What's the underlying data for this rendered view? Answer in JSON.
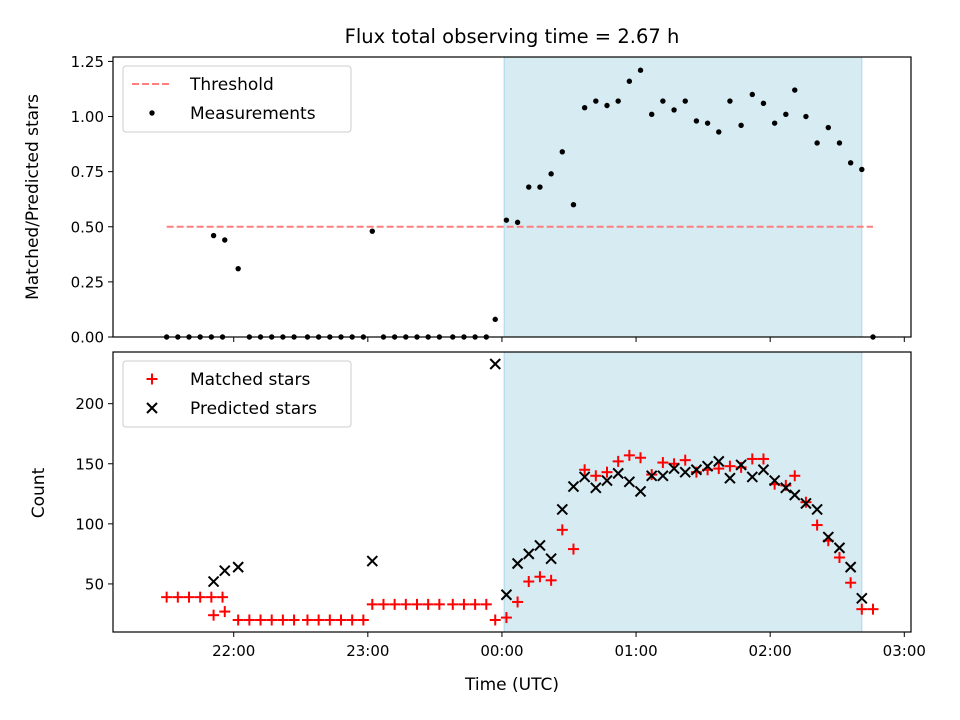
{
  "title": "Flux total observing time = 2.67 h",
  "colors": {
    "threshold": "#ff7f7f",
    "measurement": "#000000",
    "matched": "#ff0000",
    "predicted": "#000000",
    "span": "#add8e6"
  },
  "chart_data": [
    {
      "type": "scatter",
      "ylabel": "Matched/Predicted stars",
      "xlabel": "",
      "ylim": [
        0,
        1.27
      ],
      "y_ticks": [
        "0.00",
        "0.25",
        "0.50",
        "0.75",
        "1.00",
        "1.25"
      ],
      "x_range_hours": [
        -2.9,
        3.05
      ],
      "x_ticks": [
        "22:00",
        "23:00",
        "00:00",
        "01:00",
        "02:00",
        "03:00"
      ],
      "observing_span": {
        "start": "00:01",
        "end": "02:41"
      },
      "threshold": {
        "value": 0.5,
        "from": "21:30",
        "to": "02:46"
      },
      "legend": [
        "Threshold",
        "Measurements"
      ],
      "legend_location": "upper left",
      "measurements": [
        {
          "t": "21:30",
          "y": 0.0
        },
        {
          "t": "21:35",
          "y": 0.0
        },
        {
          "t": "21:40",
          "y": 0.0
        },
        {
          "t": "21:45",
          "y": 0.0
        },
        {
          "t": "21:50",
          "y": 0.0
        },
        {
          "t": "21:55",
          "y": 0.0
        },
        {
          "t": "21:51",
          "y": 0.46
        },
        {
          "t": "21:56",
          "y": 0.44
        },
        {
          "t": "22:02",
          "y": 0.31
        },
        {
          "t": "22:07",
          "y": 0.0
        },
        {
          "t": "22:12",
          "y": 0.0
        },
        {
          "t": "22:17",
          "y": 0.0
        },
        {
          "t": "22:22",
          "y": 0.0
        },
        {
          "t": "22:27",
          "y": 0.0
        },
        {
          "t": "22:33",
          "y": 0.0
        },
        {
          "t": "22:38",
          "y": 0.0
        },
        {
          "t": "22:43",
          "y": 0.0
        },
        {
          "t": "22:48",
          "y": 0.0
        },
        {
          "t": "22:53",
          "y": 0.0
        },
        {
          "t": "22:58",
          "y": 0.0
        },
        {
          "t": "23:02",
          "y": 0.48
        },
        {
          "t": "23:07",
          "y": 0.0
        },
        {
          "t": "23:12",
          "y": 0.0
        },
        {
          "t": "23:17",
          "y": 0.0
        },
        {
          "t": "23:22",
          "y": 0.0
        },
        {
          "t": "23:27",
          "y": 0.0
        },
        {
          "t": "23:32",
          "y": 0.0
        },
        {
          "t": "23:38",
          "y": 0.0
        },
        {
          "t": "23:43",
          "y": 0.0
        },
        {
          "t": "23:48",
          "y": 0.0
        },
        {
          "t": "23:53",
          "y": 0.0
        },
        {
          "t": "23:57",
          "y": 0.08
        },
        {
          "t": "00:02",
          "y": 0.53
        },
        {
          "t": "00:07",
          "y": 0.52
        },
        {
          "t": "00:12",
          "y": 0.68
        },
        {
          "t": "00:17",
          "y": 0.68
        },
        {
          "t": "00:22",
          "y": 0.74
        },
        {
          "t": "00:27",
          "y": 0.84
        },
        {
          "t": "00:32",
          "y": 0.6
        },
        {
          "t": "00:37",
          "y": 1.04
        },
        {
          "t": "00:42",
          "y": 1.07
        },
        {
          "t": "00:47",
          "y": 1.05
        },
        {
          "t": "00:52",
          "y": 1.07
        },
        {
          "t": "00:57",
          "y": 1.16
        },
        {
          "t": "01:02",
          "y": 1.21
        },
        {
          "t": "01:07",
          "y": 1.01
        },
        {
          "t": "01:12",
          "y": 1.07
        },
        {
          "t": "01:17",
          "y": 1.03
        },
        {
          "t": "01:22",
          "y": 1.07
        },
        {
          "t": "01:27",
          "y": 0.98
        },
        {
          "t": "01:32",
          "y": 0.97
        },
        {
          "t": "01:37",
          "y": 0.93
        },
        {
          "t": "01:42",
          "y": 1.07
        },
        {
          "t": "01:47",
          "y": 0.96
        },
        {
          "t": "01:52",
          "y": 1.1
        },
        {
          "t": "01:57",
          "y": 1.06
        },
        {
          "t": "02:02",
          "y": 0.97
        },
        {
          "t": "02:07",
          "y": 1.01
        },
        {
          "t": "02:11",
          "y": 1.12
        },
        {
          "t": "02:16",
          "y": 1.0
        },
        {
          "t": "02:21",
          "y": 0.88
        },
        {
          "t": "02:26",
          "y": 0.95
        },
        {
          "t": "02:31",
          "y": 0.88
        },
        {
          "t": "02:36",
          "y": 0.79
        },
        {
          "t": "02:41",
          "y": 0.76
        },
        {
          "t": "02:46",
          "y": 0.0
        }
      ]
    },
    {
      "type": "scatter",
      "ylabel": "Count",
      "xlabel": "Time (UTC)",
      "ylim": [
        10,
        243
      ],
      "y_ticks": [
        "50",
        "100",
        "150",
        "200"
      ],
      "x_range_hours": [
        -2.9,
        3.05
      ],
      "x_ticks": [
        "22:00",
        "23:00",
        "00:00",
        "01:00",
        "02:00",
        "03:00"
      ],
      "observing_span": {
        "start": "00:01",
        "end": "02:41"
      },
      "legend_location": "upper left",
      "series": [
        {
          "name": "Matched stars",
          "marker": "plus",
          "points": [
            {
              "t": "21:30",
              "y": 39
            },
            {
              "t": "21:35",
              "y": 39
            },
            {
              "t": "21:40",
              "y": 39
            },
            {
              "t": "21:45",
              "y": 39
            },
            {
              "t": "21:50",
              "y": 39
            },
            {
              "t": "21:55",
              "y": 39
            },
            {
              "t": "21:51",
              "y": 24
            },
            {
              "t": "21:56",
              "y": 27
            },
            {
              "t": "22:02",
              "y": 20
            },
            {
              "t": "22:07",
              "y": 20
            },
            {
              "t": "22:12",
              "y": 20
            },
            {
              "t": "22:17",
              "y": 20
            },
            {
              "t": "22:22",
              "y": 20
            },
            {
              "t": "22:27",
              "y": 20
            },
            {
              "t": "22:33",
              "y": 20
            },
            {
              "t": "22:38",
              "y": 20
            },
            {
              "t": "22:43",
              "y": 20
            },
            {
              "t": "22:48",
              "y": 20
            },
            {
              "t": "22:53",
              "y": 20
            },
            {
              "t": "22:58",
              "y": 20
            },
            {
              "t": "23:02",
              "y": 33
            },
            {
              "t": "23:07",
              "y": 33
            },
            {
              "t": "23:12",
              "y": 33
            },
            {
              "t": "23:17",
              "y": 33
            },
            {
              "t": "23:22",
              "y": 33
            },
            {
              "t": "23:27",
              "y": 33
            },
            {
              "t": "23:32",
              "y": 33
            },
            {
              "t": "23:38",
              "y": 33
            },
            {
              "t": "23:43",
              "y": 33
            },
            {
              "t": "23:48",
              "y": 33
            },
            {
              "t": "23:53",
              "y": 33
            },
            {
              "t": "23:57",
              "y": 20
            },
            {
              "t": "00:02",
              "y": 22
            },
            {
              "t": "00:07",
              "y": 35
            },
            {
              "t": "00:12",
              "y": 52
            },
            {
              "t": "00:17",
              "y": 56
            },
            {
              "t": "00:22",
              "y": 53
            },
            {
              "t": "00:27",
              "y": 95
            },
            {
              "t": "00:32",
              "y": 79
            },
            {
              "t": "00:37",
              "y": 145
            },
            {
              "t": "00:42",
              "y": 140
            },
            {
              "t": "00:47",
              "y": 143
            },
            {
              "t": "00:52",
              "y": 152
            },
            {
              "t": "00:57",
              "y": 157
            },
            {
              "t": "01:02",
              "y": 155
            },
            {
              "t": "01:07",
              "y": 141
            },
            {
              "t": "01:12",
              "y": 151
            },
            {
              "t": "01:17",
              "y": 150
            },
            {
              "t": "01:22",
              "y": 153
            },
            {
              "t": "01:27",
              "y": 143
            },
            {
              "t": "01:32",
              "y": 145
            },
            {
              "t": "01:37",
              "y": 146
            },
            {
              "t": "01:42",
              "y": 148
            },
            {
              "t": "01:47",
              "y": 147
            },
            {
              "t": "01:52",
              "y": 154
            },
            {
              "t": "01:57",
              "y": 154
            },
            {
              "t": "02:02",
              "y": 133
            },
            {
              "t": "02:07",
              "y": 132
            },
            {
              "t": "02:11",
              "y": 140
            },
            {
              "t": "02:16",
              "y": 118
            },
            {
              "t": "02:21",
              "y": 99
            },
            {
              "t": "02:26",
              "y": 86
            },
            {
              "t": "02:31",
              "y": 72
            },
            {
              "t": "02:36",
              "y": 51
            },
            {
              "t": "02:41",
              "y": 29
            },
            {
              "t": "02:46",
              "y": 29
            }
          ]
        },
        {
          "name": "Predicted stars",
          "marker": "x",
          "points": [
            {
              "t": "21:51",
              "y": 52
            },
            {
              "t": "21:56",
              "y": 61
            },
            {
              "t": "22:02",
              "y": 64
            },
            {
              "t": "23:02",
              "y": 69
            },
            {
              "t": "23:57",
              "y": 233
            },
            {
              "t": "00:02",
              "y": 41
            },
            {
              "t": "00:07",
              "y": 67
            },
            {
              "t": "00:12",
              "y": 75
            },
            {
              "t": "00:17",
              "y": 82
            },
            {
              "t": "00:22",
              "y": 71
            },
            {
              "t": "00:27",
              "y": 112
            },
            {
              "t": "00:32",
              "y": 131
            },
            {
              "t": "00:37",
              "y": 139
            },
            {
              "t": "00:42",
              "y": 130
            },
            {
              "t": "00:47",
              "y": 136
            },
            {
              "t": "00:52",
              "y": 142
            },
            {
              "t": "00:57",
              "y": 135
            },
            {
              "t": "01:02",
              "y": 127
            },
            {
              "t": "01:07",
              "y": 140
            },
            {
              "t": "01:12",
              "y": 140
            },
            {
              "t": "01:17",
              "y": 146
            },
            {
              "t": "01:22",
              "y": 143
            },
            {
              "t": "01:27",
              "y": 145
            },
            {
              "t": "01:32",
              "y": 148
            },
            {
              "t": "01:37",
              "y": 152
            },
            {
              "t": "01:42",
              "y": 138
            },
            {
              "t": "01:47",
              "y": 149
            },
            {
              "t": "01:52",
              "y": 139
            },
            {
              "t": "01:57",
              "y": 145
            },
            {
              "t": "02:02",
              "y": 136
            },
            {
              "t": "02:07",
              "y": 130
            },
            {
              "t": "02:11",
              "y": 124
            },
            {
              "t": "02:16",
              "y": 117
            },
            {
              "t": "02:21",
              "y": 112
            },
            {
              "t": "02:26",
              "y": 89
            },
            {
              "t": "02:31",
              "y": 80
            },
            {
              "t": "02:36",
              "y": 64
            },
            {
              "t": "02:41",
              "y": 38
            }
          ]
        }
      ]
    }
  ]
}
